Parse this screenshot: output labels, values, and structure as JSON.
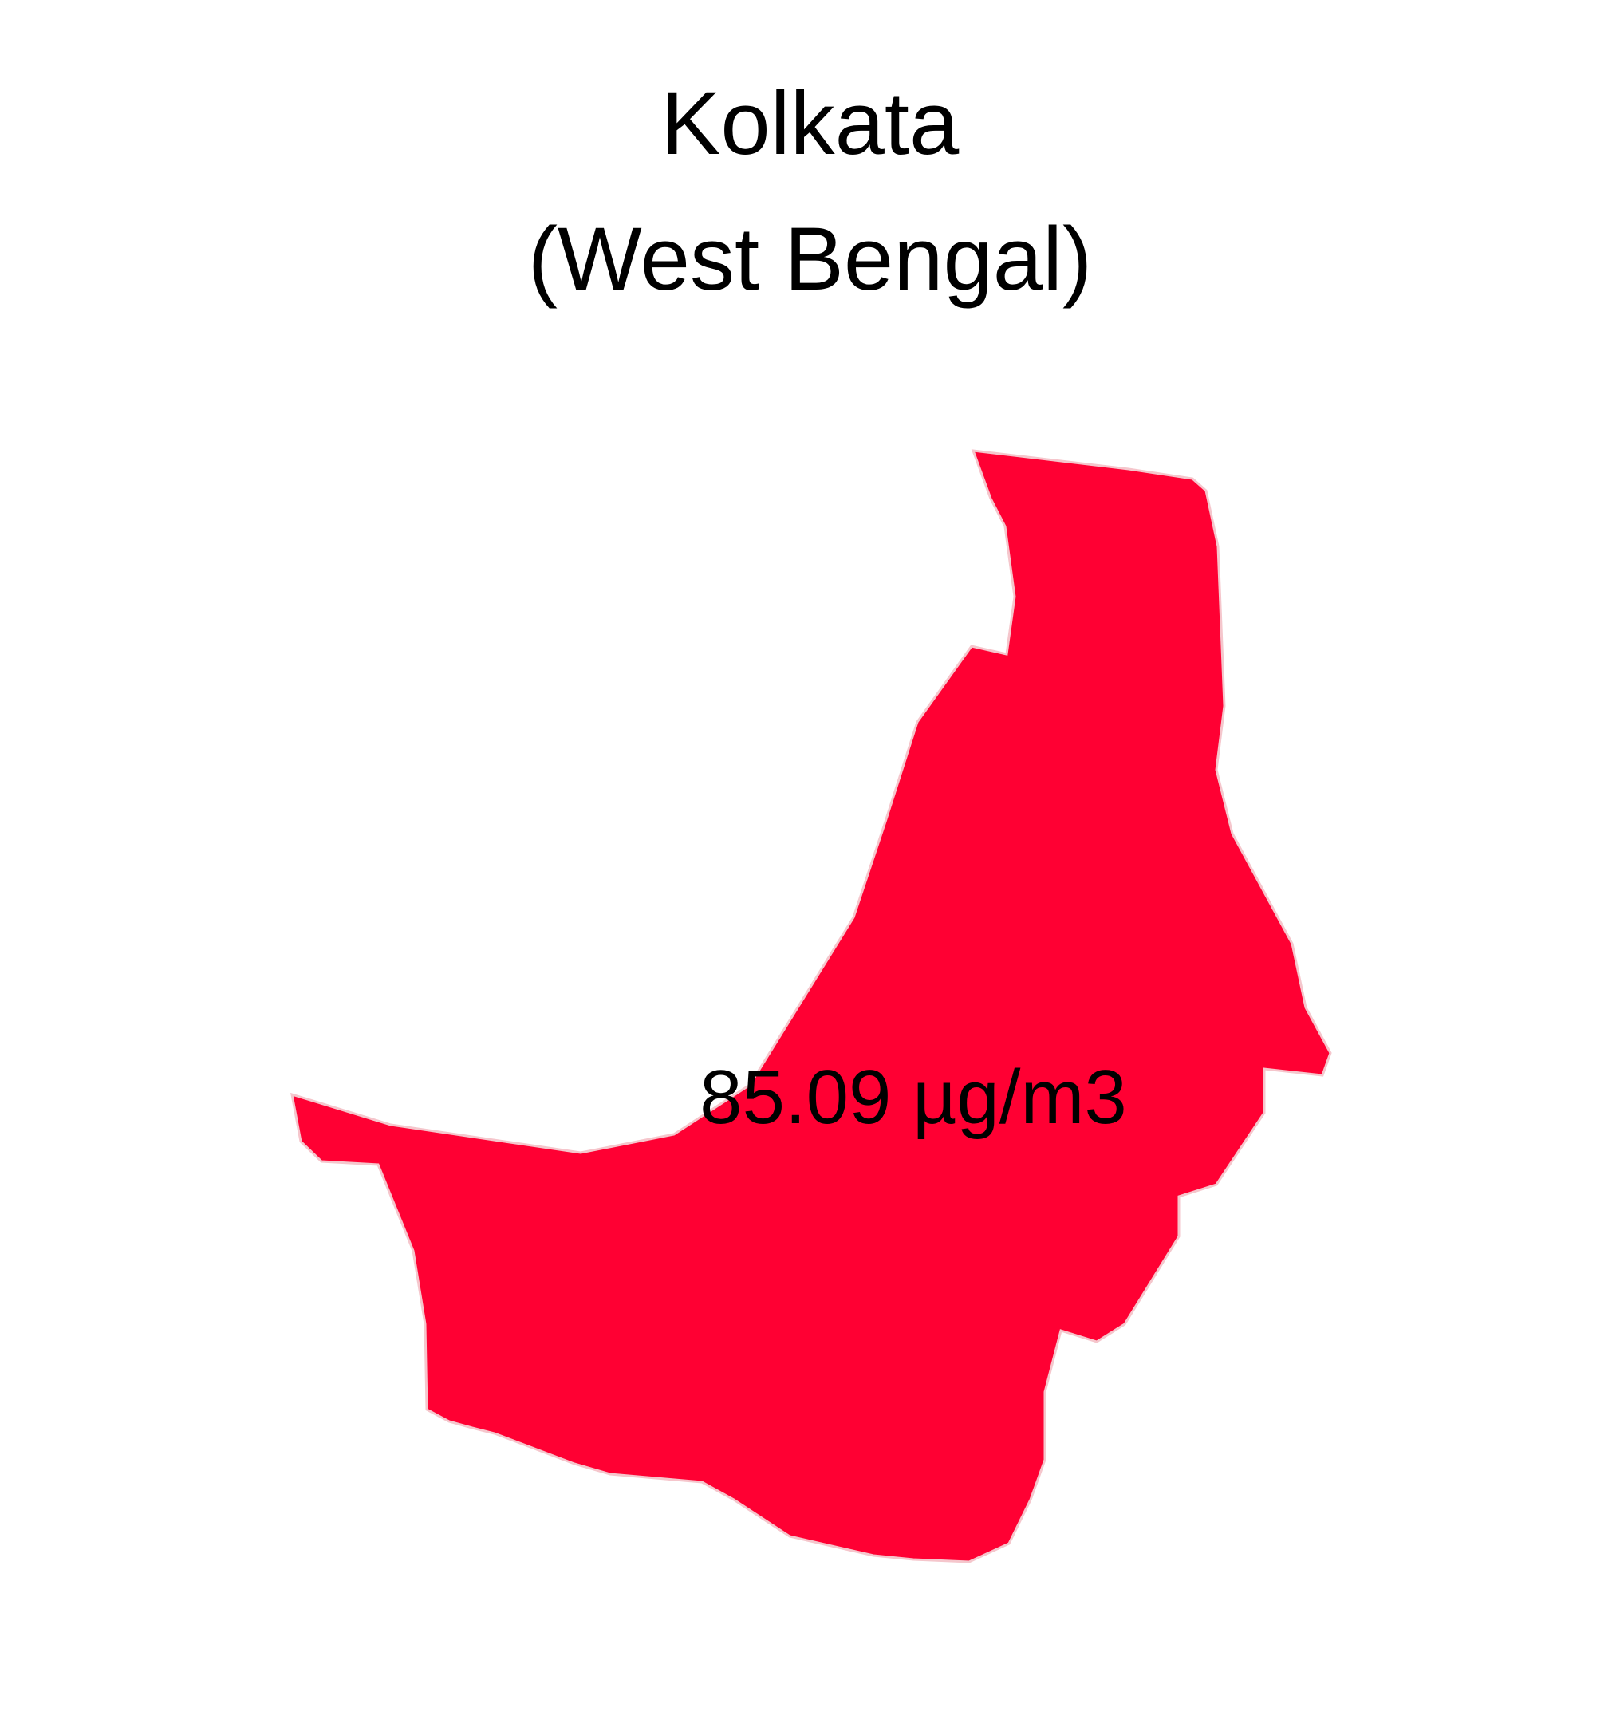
{
  "title": {
    "city": "Kolkata",
    "state": "(West Bengal)"
  },
  "region": {
    "name": "Kolkata",
    "value": 85.09,
    "unit": "µg/m3",
    "label": "85.09 µg/m3",
    "fill_color": "#FF0033",
    "stroke_color": "#f5c6cc"
  },
  "background_color": "#ffffff"
}
